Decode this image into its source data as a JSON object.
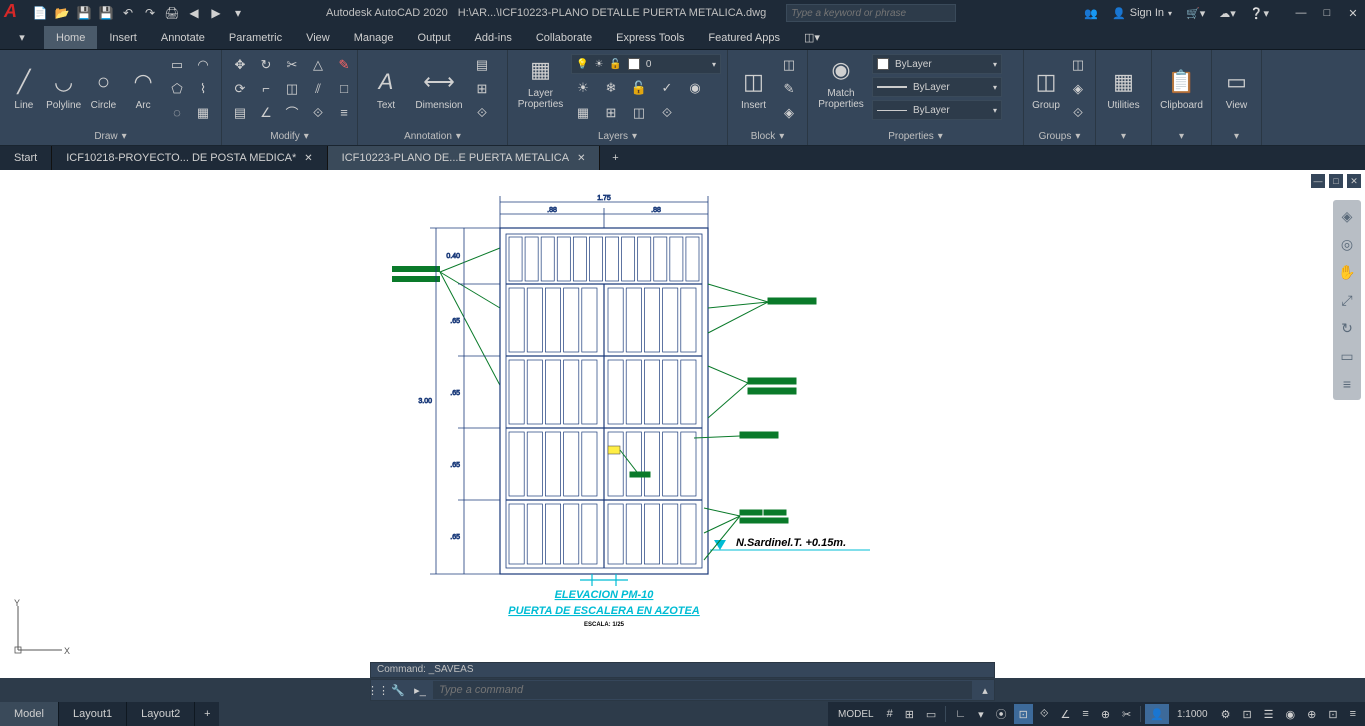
{
  "titlebar": {
    "app_name": "Autodesk AutoCAD 2020",
    "file_path": "H:\\AR...\\ICF10223-PLANO DETALLE PUERTA METALICA.dwg",
    "search_placeholder": "Type a keyword or phrase",
    "signin_label": "Sign In",
    "qat_icons": [
      "📄",
      "📂",
      "💾",
      "💾",
      "↶",
      "↷",
      "🖨",
      "◀",
      "▶",
      "▾"
    ]
  },
  "ribbon_tabs": [
    "Home",
    "Insert",
    "Annotate",
    "Parametric",
    "View",
    "Manage",
    "Output",
    "Add-ins",
    "Collaborate",
    "Express Tools",
    "Featured Apps"
  ],
  "ribbon_active_tab": "Home",
  "ribbon": {
    "draw": {
      "title": "Draw",
      "tools": [
        {
          "name": "Line",
          "glyph": "╱"
        },
        {
          "name": "Polyline",
          "glyph": "◡"
        },
        {
          "name": "Circle",
          "glyph": "○"
        },
        {
          "name": "Arc",
          "glyph": "◠"
        }
      ],
      "small": [
        "▭",
        "◠",
        "⬠",
        "⌇",
        "◌",
        "▦"
      ]
    },
    "modify": {
      "title": "Modify",
      "small": [
        "✥",
        "↻",
        "✂",
        "△",
        "⟳",
        "⌐",
        "◫",
        "⫽",
        "□",
        "▤",
        "∠",
        "⌒",
        "⟐",
        "≡",
        "⊡"
      ]
    },
    "annotation": {
      "title": "Annotation",
      "tools": [
        {
          "name": "Text",
          "glyph": "A"
        },
        {
          "name": "Dimension",
          "glyph": "⟷"
        }
      ],
      "small": [
        "▤",
        "⊞",
        "⟐"
      ]
    },
    "layers": {
      "title": "Layers",
      "props_label": "Layer\nProperties",
      "current_layer": "0",
      "layer_color": "#ffffff",
      "icons_row1": [
        "❄",
        "☀",
        "🔓",
        "▭"
      ],
      "small": [
        "☀",
        "❄",
        "🔓",
        "✓",
        "◉",
        "▦",
        "⊞",
        "◫",
        "⟐"
      ]
    },
    "block": {
      "title": "Block",
      "insert_label": "Insert",
      "small": [
        "◫",
        "✎",
        "◈",
        "⊞"
      ]
    },
    "properties": {
      "title": "Properties",
      "match_label": "Match\nProperties",
      "color_field": "ByLayer",
      "color_swatch": "#ffffff",
      "linetype_field": "ByLayer",
      "lineweight_field": "ByLayer"
    },
    "groups": {
      "title": "Groups",
      "group_label": "Group",
      "small": [
        "◫",
        "◈",
        "⟐"
      ]
    },
    "utilities": {
      "title": "",
      "label": "Utilities"
    },
    "clipboard": {
      "title": "",
      "label": "Clipboard"
    },
    "view": {
      "title": "",
      "label": "View"
    }
  },
  "file_tabs": [
    {
      "label": "Start",
      "closable": false,
      "active": false
    },
    {
      "label": "ICF10218-PROYECTO... DE POSTA MEDICA*",
      "closable": true,
      "active": false
    },
    {
      "label": "ICF10223-PLANO DE...E PUERTA METALICA",
      "closable": true,
      "active": true
    }
  ],
  "layout_tabs": [
    "Model",
    "Layout1",
    "Layout2"
  ],
  "layout_active": "Model",
  "command": {
    "history": "Command: _SAVEAS",
    "placeholder": "Type a command"
  },
  "status": {
    "model_label": "MODEL",
    "scale_label": "1:1000",
    "buttons": [
      "#",
      "⊞",
      "▭",
      "∟",
      "▾",
      "⦿",
      "⊡",
      "⟐",
      "∠",
      "≡",
      "⊕",
      "✂"
    ],
    "right_buttons": [
      "👤",
      "⚙",
      "⊡",
      "☰",
      "◉",
      "⊕",
      "⊡",
      "≡"
    ]
  },
  "drawing": {
    "title1": "ELEVACION PM-10",
    "title2": "PUERTA DE ESCALERA EN AZOTEA",
    "scale_note": "ESCALA: 1/25",
    "level_note": "N.Sardinel.T. +0.15m.",
    "dims": {
      "total_width": "1.75",
      "half_width_left": ".88",
      "half_width_right": ".88",
      "total_height": "3.00",
      "top_band": "0.40",
      "panel_h": ".65"
    },
    "colors": {
      "door_outline": "#1a3a7a",
      "door_fill": "#ffffff",
      "dim_line": "#1a3a7a",
      "title_color": "#00bcd4",
      "callout": "#0a7a2a",
      "level_line": "#00bcd4"
    },
    "door": {
      "outer_w": 208,
      "outer_h": 346,
      "top_band_h": 56,
      "rows": 4,
      "cols_per_leaf": 5,
      "leaf_gap": 8
    }
  }
}
